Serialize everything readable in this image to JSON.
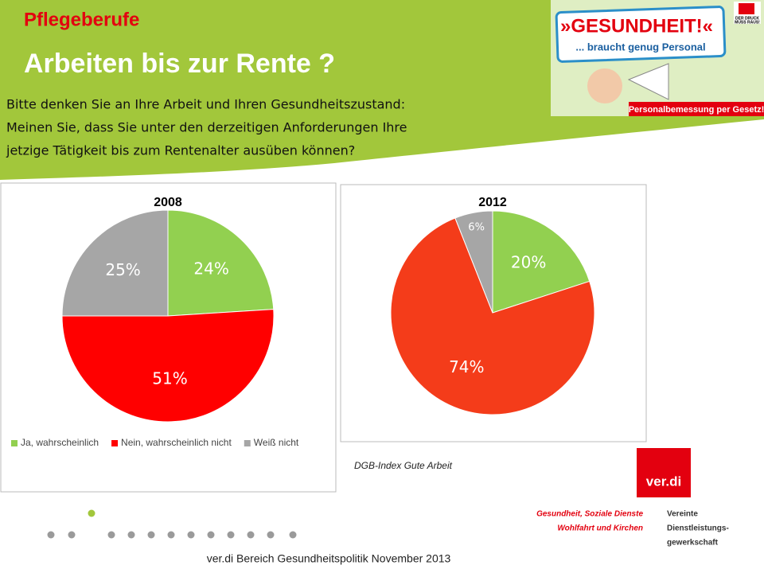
{
  "header": {
    "kicker": "Pflegeberufe",
    "title": "Arbeiten bis zur Rente ?",
    "question": [
      "Bitte denken Sie an Ihre Arbeit und Ihren Gesundheitszustand:",
      "Meinen Sie, dass Sie unter den derzeitigen Anforderungen Ihre",
      "jetzige Tätigkeit  bis zum Rentenalter ausüben können?"
    ]
  },
  "logo": {
    "line1": "»GESUNDHEIT!«",
    "line2": "... braucht genug Personal",
    "banner": "Personalbemessung per Gesetz!",
    "badge": [
      "DER DRUCK",
      "MUSS RAUS!"
    ]
  },
  "chart_data": [
    {
      "type": "pie",
      "title": "2008",
      "categories": [
        "Ja, wahrscheinlich",
        "Nein, wahrscheinlich nicht",
        "Weiß nicht"
      ],
      "values": [
        24,
        51,
        25
      ],
      "value_labels": [
        "24%",
        "51%",
        "25%"
      ],
      "colors": [
        "#92d050",
        "#ff0000",
        "#a6a6a6"
      ],
      "legend": "bottom"
    },
    {
      "type": "pie",
      "title": "2012",
      "values": [
        20,
        74,
        6
      ],
      "value_labels": [
        "20%",
        "74%",
        "6%"
      ],
      "colors": [
        "#92d050",
        "#f43c1a",
        "#a6a6a6"
      ]
    }
  ],
  "source": "DGB-Index Gute Arbeit",
  "footer": "ver.di Bereich Gesundheitspolitik  November 2013",
  "verdi": {
    "name": "ver.di",
    "left": [
      "Gesundheit, Soziale Dienste",
      "Wohlfahrt und Kirchen"
    ],
    "right": [
      "Vereinte",
      "Dienstleistungs-",
      "gewerkschaft"
    ]
  }
}
